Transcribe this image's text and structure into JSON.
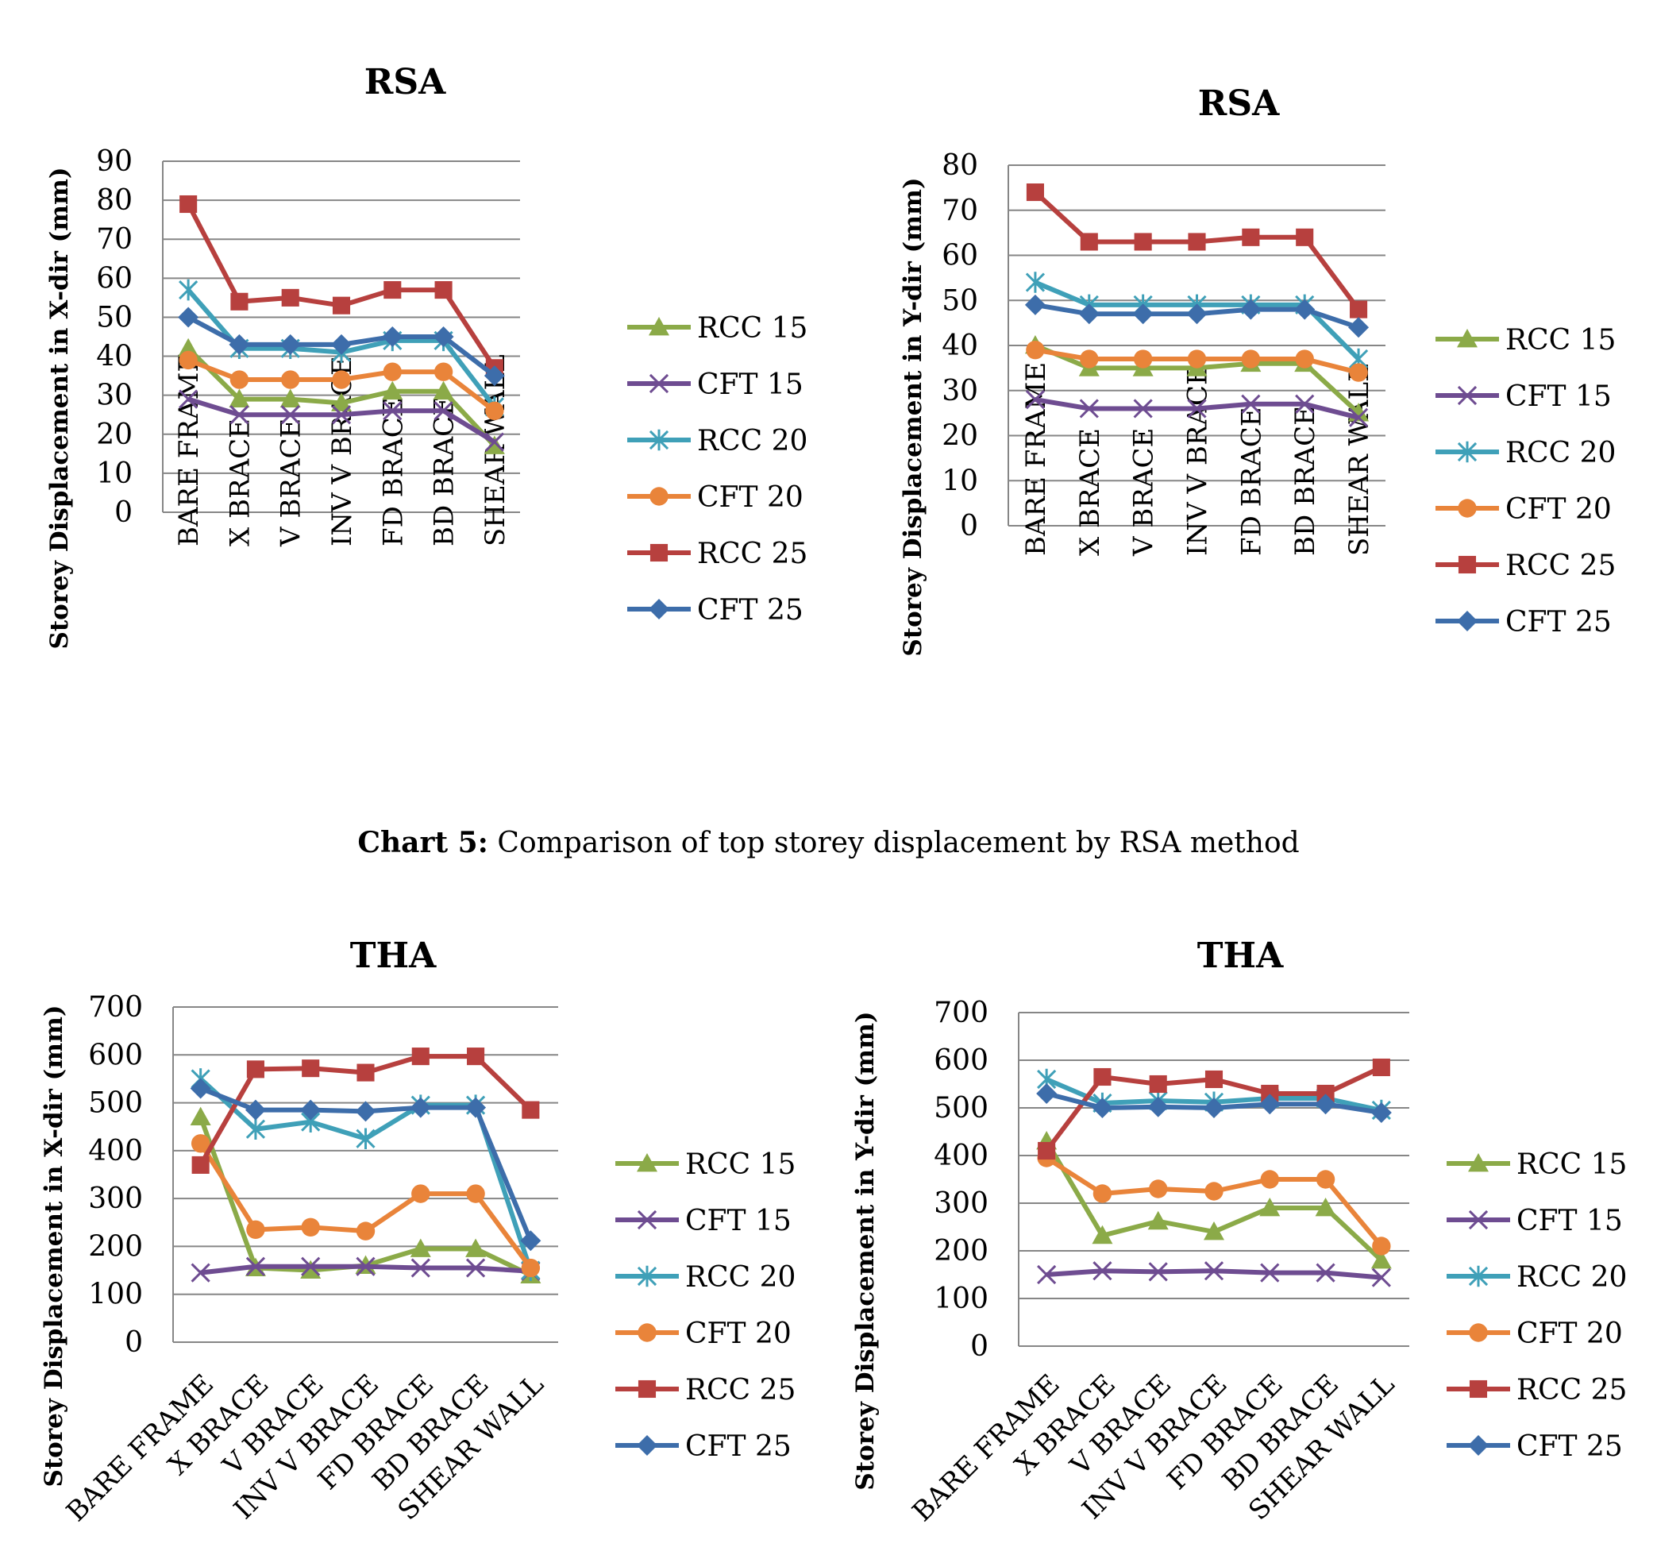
{
  "caption": {
    "label": "Chart 5:",
    "text": "Comparison of top storey displacement by RSA method"
  },
  "chart_data": [
    {
      "type": "line",
      "title": "RSA",
      "ylabel": "Storey Displacement in X-dir (mm)",
      "ylim": [
        0,
        90
      ],
      "yticks": [
        0,
        10,
        20,
        30,
        40,
        50,
        60,
        70,
        80,
        90
      ],
      "categories": [
        "BARE FRAME",
        "X BRACE",
        "V BRACE",
        "INV V BRACE",
        "FD BRACE",
        "BD BRACE",
        "SHEAR WALL"
      ],
      "legend_position": "right",
      "grid": true,
      "series": [
        {
          "name": "RCC 15",
          "color": "#8BAA48",
          "marker": "triangle",
          "values": [
            42,
            29,
            29,
            28,
            31,
            31,
            17
          ]
        },
        {
          "name": "CFT 15",
          "color": "#6E4C91",
          "marker": "x",
          "values": [
            29,
            25,
            25,
            25,
            26,
            26,
            18
          ]
        },
        {
          "name": "RCC 20",
          "color": "#3FA0B8",
          "marker": "star",
          "values": [
            57,
            42,
            42,
            41,
            44,
            44,
            27
          ]
        },
        {
          "name": "CFT 20",
          "color": "#E9843A",
          "marker": "circle",
          "values": [
            39,
            34,
            34,
            34,
            36,
            36,
            26
          ]
        },
        {
          "name": "RCC 25",
          "color": "#B7403E",
          "marker": "square",
          "values": [
            79,
            54,
            55,
            53,
            57,
            57,
            37
          ]
        },
        {
          "name": "CFT 25",
          "color": "#3D6DAA",
          "marker": "diamond",
          "values": [
            50,
            43,
            43,
            43,
            45,
            45,
            35
          ]
        }
      ]
    },
    {
      "type": "line",
      "title": "RSA",
      "ylabel": "Storey Displacement in Y-dir (mm)",
      "ylim": [
        0,
        80
      ],
      "yticks": [
        0,
        10,
        20,
        30,
        40,
        50,
        60,
        70,
        80
      ],
      "categories": [
        "BARE FRAME",
        "X BRACE",
        "V BRACE",
        "INV V BRACE",
        "FD BRACE",
        "BD BRACE",
        "SHEAR WALL"
      ],
      "legend_position": "right",
      "grid": true,
      "series": [
        {
          "name": "RCC 15",
          "color": "#8BAA48",
          "marker": "triangle",
          "values": [
            40,
            35,
            35,
            35,
            36,
            36,
            25
          ]
        },
        {
          "name": "CFT 15",
          "color": "#6E4C91",
          "marker": "x",
          "values": [
            28,
            26,
            26,
            26,
            27,
            27,
            24
          ]
        },
        {
          "name": "RCC 20",
          "color": "#3FA0B8",
          "marker": "star",
          "values": [
            54,
            49,
            49,
            49,
            49,
            49,
            37
          ]
        },
        {
          "name": "CFT 20",
          "color": "#E9843A",
          "marker": "circle",
          "values": [
            39,
            37,
            37,
            37,
            37,
            37,
            34
          ]
        },
        {
          "name": "RCC 25",
          "color": "#B7403E",
          "marker": "square",
          "values": [
            74,
            63,
            63,
            63,
            64,
            64,
            48
          ]
        },
        {
          "name": "CFT 25",
          "color": "#3D6DAA",
          "marker": "diamond",
          "values": [
            49,
            47,
            47,
            47,
            48,
            48,
            44
          ]
        }
      ]
    },
    {
      "type": "line",
      "title": "THA",
      "ylabel": "Storey Displacement in X-dir (mm)",
      "ylim": [
        0,
        700
      ],
      "yticks": [
        0,
        100,
        200,
        300,
        400,
        500,
        600,
        700
      ],
      "categories": [
        "BARE FRAME",
        "X BRACE",
        "V BRACE",
        "INV V BRACE",
        "FD BRACE",
        "BD BRACE",
        "SHEAR WALL"
      ],
      "legend_position": "right",
      "grid": true,
      "series": [
        {
          "name": "RCC 15",
          "color": "#8BAA48",
          "marker": "triangle",
          "values": [
            470,
            155,
            150,
            160,
            195,
            195,
            140
          ]
        },
        {
          "name": "CFT 15",
          "color": "#6E4C91",
          "marker": "x",
          "values": [
            145,
            158,
            158,
            158,
            155,
            155,
            148
          ]
        },
        {
          "name": "RCC 20",
          "color": "#3FA0B8",
          "marker": "star",
          "values": [
            550,
            445,
            460,
            425,
            495,
            495,
            150
          ]
        },
        {
          "name": "CFT 20",
          "color": "#E9843A",
          "marker": "circle",
          "values": [
            415,
            235,
            240,
            232,
            310,
            310,
            155
          ]
        },
        {
          "name": "RCC 25",
          "color": "#B7403E",
          "marker": "square",
          "values": [
            370,
            570,
            572,
            563,
            597,
            597,
            485
          ]
        },
        {
          "name": "CFT 25",
          "color": "#3D6DAA",
          "marker": "diamond",
          "values": [
            530,
            485,
            485,
            482,
            490,
            490,
            212
          ]
        }
      ]
    },
    {
      "type": "line",
      "title": "THA",
      "ylabel": "Storey Displacement in Y-dir (mm)",
      "ylim": [
        0,
        700
      ],
      "yticks": [
        0,
        100,
        200,
        300,
        400,
        500,
        600,
        700
      ],
      "categories": [
        "BARE FRAME",
        "X BRACE",
        "V BRACE",
        "INV V BRACE",
        "FD BRACE",
        "BD BRACE",
        "SHEAR WALL"
      ],
      "legend_position": "right",
      "grid": true,
      "series": [
        {
          "name": "RCC 15",
          "color": "#8BAA48",
          "marker": "triangle",
          "values": [
            430,
            232,
            262,
            240,
            290,
            290,
            180
          ]
        },
        {
          "name": "CFT 15",
          "color": "#6E4C91",
          "marker": "x",
          "values": [
            150,
            158,
            156,
            158,
            154,
            154,
            144
          ]
        },
        {
          "name": "RCC 20",
          "color": "#3FA0B8",
          "marker": "star",
          "values": [
            560,
            510,
            515,
            512,
            520,
            520,
            495
          ]
        },
        {
          "name": "CFT 20",
          "color": "#E9843A",
          "marker": "circle",
          "values": [
            395,
            320,
            330,
            325,
            350,
            350,
            210
          ]
        },
        {
          "name": "RCC 25",
          "color": "#B7403E",
          "marker": "square",
          "values": [
            410,
            565,
            550,
            560,
            530,
            530,
            585
          ]
        },
        {
          "name": "CFT 25",
          "color": "#3D6DAA",
          "marker": "diamond",
          "values": [
            530,
            500,
            502,
            500,
            508,
            508,
            490
          ]
        }
      ]
    }
  ]
}
